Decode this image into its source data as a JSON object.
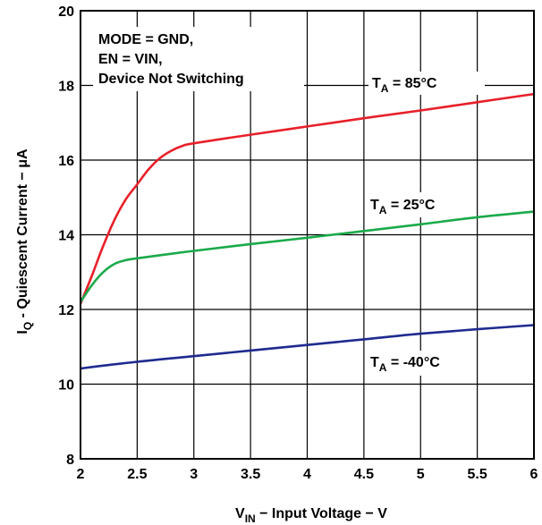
{
  "chart_data": {
    "type": "line",
    "title": "",
    "xlabel": {
      "main": "V",
      "sub": "IN",
      "rest": " − Input Voltage − V"
    },
    "ylabel": {
      "main": "I",
      "sub": "Q",
      "rest": " - Quiescent Current  − μA"
    },
    "xlim": [
      2,
      6
    ],
    "ylim": [
      8,
      20
    ],
    "grid": true,
    "x_ticks": [
      2,
      2.5,
      3,
      3.5,
      4,
      4.5,
      5,
      5.5,
      6
    ],
    "x_tick_labels": [
      "2",
      "2.5",
      "3",
      "3.5",
      "4",
      "4.5",
      "5",
      "5.5",
      "6"
    ],
    "y_ticks": [
      8,
      10,
      12,
      14,
      16,
      18,
      20
    ],
    "y_tick_labels": [
      "8",
      "10",
      "12",
      "14",
      "16",
      "18",
      "20"
    ],
    "conditions": [
      "MODE = GND,",
      "EN = VIN,",
      "Device Not Switching"
    ],
    "series": [
      {
        "label_main": "T",
        "label_sub": "A",
        "label_rest": "  = 85°C",
        "color": "#e8202a",
        "x": [
          2.0,
          2.1,
          2.2,
          2.3,
          2.4,
          2.5,
          2.6,
          2.7,
          2.8,
          2.9,
          3.0,
          3.5,
          4.0,
          4.5,
          5.0,
          5.5,
          6.0
        ],
        "y": [
          12.15,
          12.9,
          13.7,
          14.4,
          14.95,
          15.35,
          15.75,
          16.05,
          16.25,
          16.38,
          16.45,
          16.68,
          16.9,
          17.12,
          17.33,
          17.55,
          17.77
        ]
      },
      {
        "label_main": "T",
        "label_sub": "A",
        "label_rest": "  = 25°C",
        "color": "#1aaa4a",
        "x": [
          2.0,
          2.1,
          2.2,
          2.3,
          2.4,
          2.5,
          2.75,
          3.0,
          3.5,
          4.0,
          4.5,
          5.0,
          5.5,
          6.0
        ],
        "y": [
          12.2,
          12.65,
          13.0,
          13.22,
          13.32,
          13.37,
          13.47,
          13.57,
          13.75,
          13.92,
          14.1,
          14.28,
          14.47,
          14.62
        ]
      },
      {
        "label_main": "T",
        "label_sub": "A",
        "label_rest": " = -40°C",
        "color": "#1e2b8f",
        "x": [
          2.0,
          2.5,
          3.0,
          3.5,
          4.0,
          4.5,
          5.0,
          5.5,
          6.0
        ],
        "y": [
          10.42,
          10.6,
          10.75,
          10.9,
          11.05,
          11.2,
          11.35,
          11.47,
          11.58
        ]
      }
    ]
  }
}
